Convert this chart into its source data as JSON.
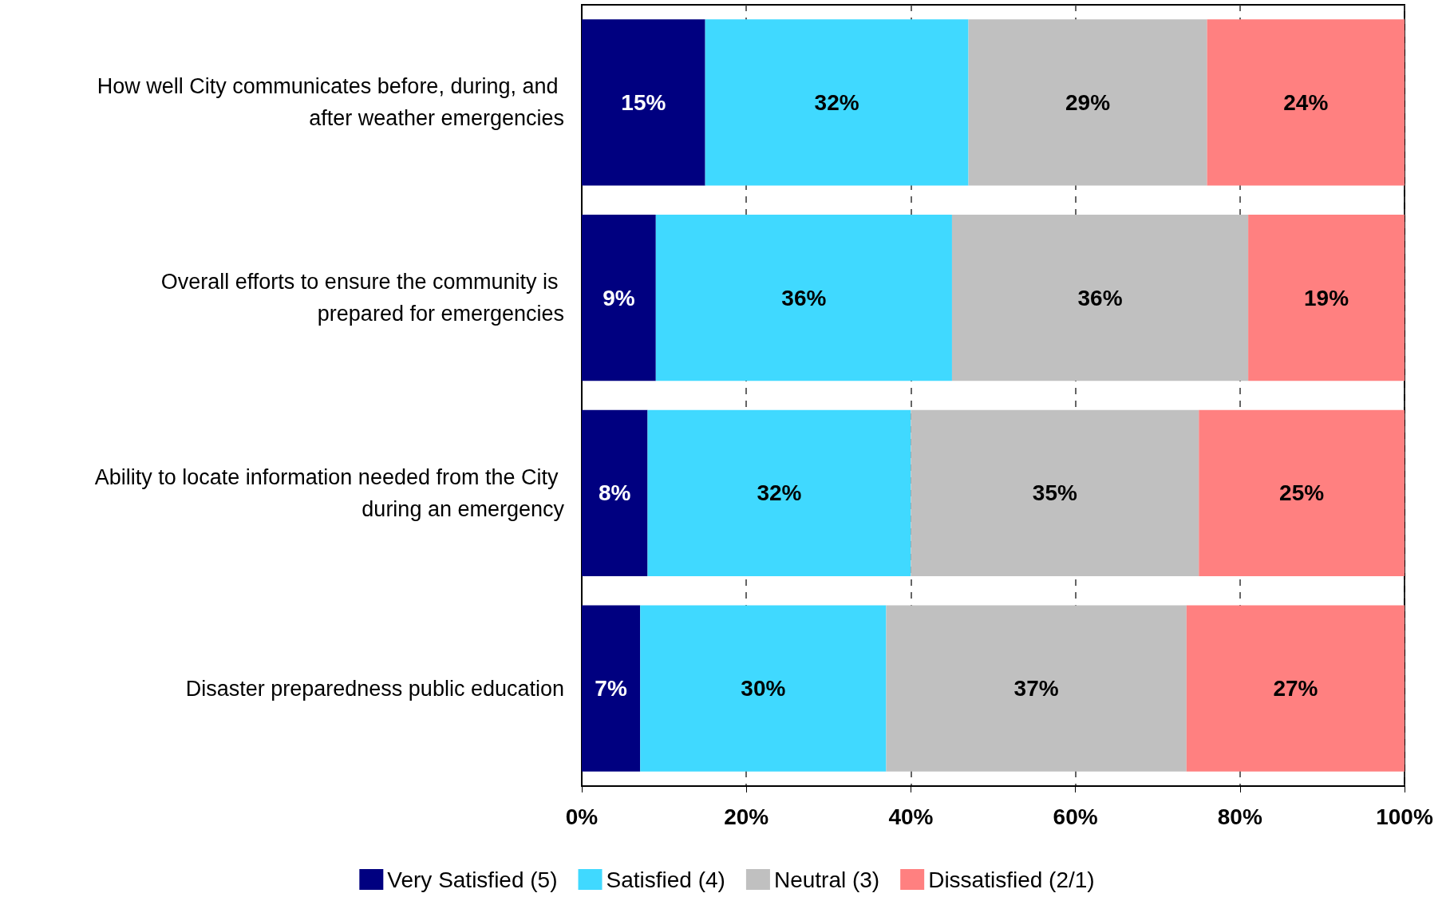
{
  "chart_data": {
    "type": "bar",
    "orientation": "horizontal",
    "stacked": true,
    "categories": [
      "How well City communicates before, during, and after weather emergencies",
      "Overall efforts to ensure the community is prepared for emergencies",
      "Ability to locate information needed from the City during an emergency",
      "Disaster preparedness public education"
    ],
    "series": [
      {
        "name": "Very Satisfied (5)",
        "color": "#000080",
        "values": [
          15,
          9,
          8,
          7.1
        ],
        "value_labels": [
          "15%",
          "9%",
          "8%",
          "7%"
        ]
      },
      {
        "name": "Satisfied (4)",
        "color": "#40d9ff",
        "values": [
          32,
          36,
          32,
          29.9
        ],
        "value_labels": [
          "32%",
          "36%",
          "32%",
          "30%"
        ]
      },
      {
        "name": "Neutral (3)",
        "color": "#c0c0c0",
        "values": [
          29,
          36,
          35,
          36.5
        ],
        "value_labels": [
          "29%",
          "36%",
          "35%",
          "37%"
        ]
      },
      {
        "name": "Dissatisfied (2/1)",
        "color": "#ff8080",
        "values": [
          24,
          19,
          25,
          26.5
        ],
        "value_labels": [
          "24%",
          "19%",
          "25%",
          "27%"
        ]
      }
    ],
    "xlim": [
      0,
      100
    ],
    "xticks": [
      {
        "value": 0,
        "label": "0%"
      },
      {
        "value": 20,
        "label": "20%"
      },
      {
        "value": 40,
        "label": "40%"
      },
      {
        "value": 60,
        "label": "60%"
      },
      {
        "value": 80,
        "label": "80%"
      },
      {
        "value": 100,
        "label": "100%"
      }
    ],
    "grid": "x",
    "legend": "bottom"
  }
}
